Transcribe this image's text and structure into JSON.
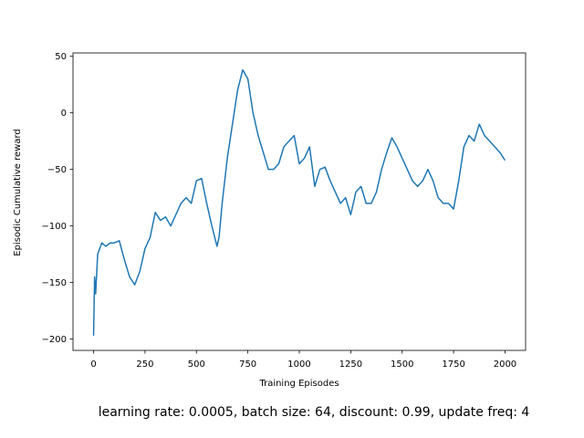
{
  "chart_data": {
    "type": "line",
    "xlabel": "Training Episodes",
    "ylabel": "Episodic Cumulative reward",
    "footnote": "learning rate: 0.0005, batch size: 64, discount: 0.99, update freq: 4",
    "color": "#1f77b4",
    "x": [
      0,
      5,
      10,
      20,
      40,
      60,
      80,
      100,
      125,
      150,
      175,
      200,
      225,
      250,
      275,
      300,
      325,
      350,
      375,
      400,
      425,
      450,
      475,
      500,
      525,
      550,
      575,
      600,
      610,
      625,
      650,
      675,
      700,
      725,
      750,
      775,
      800,
      825,
      850,
      875,
      900,
      925,
      950,
      975,
      1000,
      1025,
      1050,
      1075,
      1100,
      1125,
      1150,
      1175,
      1200,
      1225,
      1250,
      1275,
      1300,
      1325,
      1350,
      1375,
      1400,
      1425,
      1450,
      1475,
      1500,
      1525,
      1550,
      1575,
      1600,
      1625,
      1650,
      1675,
      1700,
      1725,
      1750,
      1775,
      1800,
      1825,
      1850,
      1875,
      1900,
      1925,
      1950,
      1975,
      2000
    ],
    "values": [
      -197,
      -145,
      -160,
      -125,
      -115,
      -118,
      -115,
      -115,
      -113,
      -130,
      -145,
      -152,
      -140,
      -120,
      -110,
      -88,
      -95,
      -92,
      -100,
      -90,
      -80,
      -75,
      -80,
      -60,
      -58,
      -80,
      -100,
      -118,
      -110,
      -80,
      -40,
      -10,
      20,
      38,
      30,
      0,
      -20,
      -35,
      -50,
      -50,
      -45,
      -30,
      -25,
      -20,
      -45,
      -40,
      -30,
      -65,
      -50,
      -48,
      -60,
      -70,
      -80,
      -75,
      -90,
      -70,
      -65,
      -80,
      -80,
      -70,
      -50,
      -35,
      -22,
      -30,
      -40,
      -50,
      -60,
      -65,
      -60,
      -50,
      -60,
      -75,
      -80,
      -80,
      -85,
      -60,
      -30,
      -20,
      -25,
      -10,
      -20,
      -25,
      -30,
      -35,
      -42
    ],
    "xlim": [
      -100,
      2100
    ],
    "ylim": [
      -210,
      53
    ],
    "xticks": [
      0,
      250,
      500,
      750,
      1000,
      1250,
      1500,
      1750,
      2000
    ],
    "yticks": [
      {
        "value": -200,
        "label": "−200"
      },
      {
        "value": -150,
        "label": "−150"
      },
      {
        "value": -100,
        "label": "−100"
      },
      {
        "value": -50,
        "label": "−50"
      },
      0,
      50
    ]
  }
}
